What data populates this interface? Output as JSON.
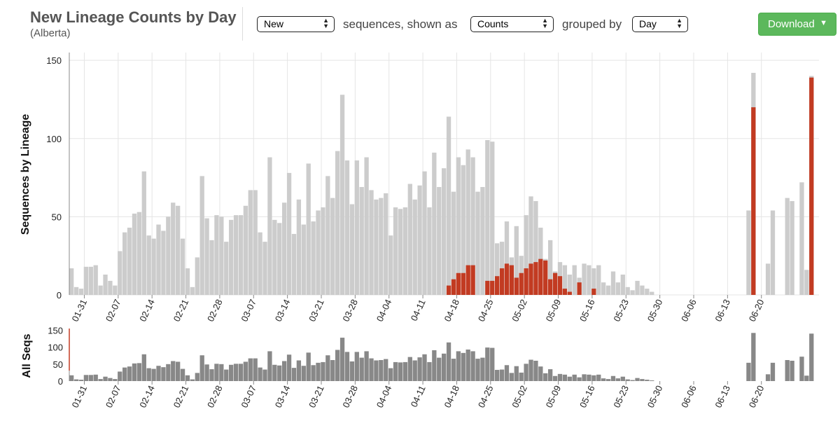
{
  "header": {
    "title": "New Lineage Counts by Day",
    "subtitle": "(Alberta)",
    "select_sequences": "New",
    "label_sequences": "sequences, shown as",
    "select_shown_as": "Counts",
    "label_grouped_by": "grouped by",
    "select_grouped_by": "Day",
    "download_label": "Download"
  },
  "colors": {
    "highlight": "#c23b22",
    "background_bars": "#cccccc",
    "all_seqs_bars": "#888888",
    "download_button": "#5cb85c"
  },
  "chart_data": [
    {
      "type": "bar",
      "ylabel": "Sequences by Lineage",
      "ylim": [
        0,
        155
      ],
      "yticks": [
        0,
        50,
        100,
        150
      ],
      "grid": true,
      "x_tick_labels": [
        "01-31",
        "02-07",
        "02-14",
        "02-21",
        "02-28",
        "03-07",
        "03-14",
        "03-21",
        "03-28",
        "04-04",
        "04-11",
        "04-18",
        "04-25",
        "05-02",
        "05-09",
        "05-16",
        "05-23",
        "05-30",
        "06-06",
        "06-13",
        "06-20"
      ],
      "series": [
        {
          "role": "all_lineages",
          "values": [
            17,
            5,
            4,
            18,
            18,
            19,
            6,
            13,
            9,
            6,
            28,
            40,
            43,
            52,
            53,
            79,
            38,
            36,
            45,
            41,
            50,
            59,
            57,
            36,
            17,
            5,
            24,
            76,
            49,
            35,
            51,
            50,
            34,
            48,
            51,
            51,
            57,
            67,
            67,
            40,
            34,
            88,
            48,
            46,
            59,
            78,
            39,
            61,
            45,
            84,
            47,
            54,
            56,
            76,
            62,
            92,
            128,
            86,
            58,
            86,
            69,
            88,
            67,
            61,
            62,
            65,
            38,
            56,
            55,
            56,
            71,
            61,
            70,
            79,
            56,
            91,
            69,
            81,
            114,
            66,
            88,
            83,
            93,
            88,
            66,
            69,
            99,
            98,
            33,
            34,
            47,
            24,
            44,
            25,
            51,
            63,
            60,
            43,
            23,
            35,
            15,
            21,
            19,
            13,
            19,
            11,
            20,
            19,
            17,
            19,
            8,
            6,
            15,
            8,
            13,
            5,
            3,
            9,
            6,
            4,
            2,
            0,
            0,
            0,
            0,
            0,
            0,
            0,
            0,
            0,
            0,
            0,
            0,
            0,
            0,
            0,
            0,
            0,
            0,
            0,
            54,
            142,
            0,
            0,
            20,
            54,
            0,
            0,
            62,
            60,
            0,
            72,
            16,
            140
          ]
        },
        {
          "role": "highlighted_lineage",
          "values": [
            0,
            0,
            0,
            0,
            0,
            0,
            0,
            0,
            0,
            0,
            0,
            0,
            0,
            0,
            0,
            0,
            0,
            0,
            0,
            0,
            0,
            0,
            0,
            0,
            0,
            0,
            0,
            0,
            0,
            0,
            0,
            0,
            0,
            0,
            0,
            0,
            0,
            0,
            0,
            0,
            0,
            0,
            0,
            0,
            0,
            0,
            0,
            0,
            0,
            0,
            0,
            0,
            0,
            0,
            0,
            0,
            0,
            0,
            0,
            0,
            0,
            0,
            0,
            0,
            0,
            0,
            0,
            0,
            0,
            0,
            0,
            0,
            0,
            0,
            0,
            0,
            0,
            0,
            6,
            10,
            14,
            14,
            19,
            19,
            0,
            0,
            9,
            9,
            12,
            17,
            20,
            19,
            11,
            14,
            17,
            20,
            21,
            23,
            22,
            10,
            14,
            12,
            4,
            2,
            0,
            8,
            0,
            0,
            4,
            0,
            0,
            0,
            0,
            0,
            0,
            0,
            0,
            0,
            0,
            0,
            0,
            0,
            0,
            0,
            0,
            0,
            0,
            0,
            0,
            0,
            0,
            0,
            0,
            0,
            0,
            0,
            0,
            0,
            0,
            0,
            0,
            120,
            0,
            0,
            0,
            0,
            0,
            0,
            0,
            0,
            0,
            0,
            0,
            139
          ]
        }
      ]
    },
    {
      "type": "bar",
      "ylabel": "All Seqs",
      "ylim": [
        0,
        155
      ],
      "yticks": [
        0,
        50,
        100,
        150
      ],
      "x_tick_labels": [
        "01-31",
        "02-07",
        "02-14",
        "02-21",
        "02-28",
        "03-07",
        "03-14",
        "03-21",
        "03-28",
        "04-04",
        "04-11",
        "04-18",
        "04-25",
        "05-02",
        "05-09",
        "05-16",
        "05-23",
        "05-30",
        "06-06",
        "06-13",
        "06-20"
      ],
      "series": [
        {
          "role": "all_sequences",
          "values": [
            17,
            5,
            4,
            18,
            18,
            19,
            6,
            13,
            9,
            6,
            28,
            40,
            43,
            52,
            53,
            79,
            38,
            36,
            45,
            41,
            50,
            59,
            57,
            36,
            17,
            5,
            24,
            76,
            49,
            35,
            51,
            50,
            34,
            48,
            51,
            51,
            57,
            67,
            67,
            40,
            34,
            88,
            48,
            46,
            59,
            78,
            39,
            61,
            45,
            84,
            47,
            54,
            56,
            76,
            62,
            92,
            128,
            86,
            58,
            86,
            69,
            88,
            67,
            61,
            62,
            65,
            38,
            56,
            55,
            56,
            71,
            61,
            70,
            79,
            56,
            91,
            69,
            81,
            114,
            66,
            88,
            83,
            93,
            88,
            66,
            69,
            99,
            98,
            33,
            34,
            47,
            24,
            44,
            25,
            51,
            63,
            60,
            43,
            23,
            35,
            15,
            21,
            19,
            13,
            19,
            11,
            20,
            19,
            17,
            19,
            8,
            6,
            15,
            8,
            13,
            5,
            3,
            9,
            6,
            4,
            2,
            0,
            0,
            0,
            0,
            0,
            0,
            0,
            0,
            0,
            0,
            0,
            0,
            0,
            0,
            0,
            0,
            0,
            0,
            0,
            54,
            142,
            0,
            0,
            20,
            54,
            0,
            0,
            62,
            60,
            0,
            72,
            16,
            140
          ]
        }
      ]
    }
  ]
}
